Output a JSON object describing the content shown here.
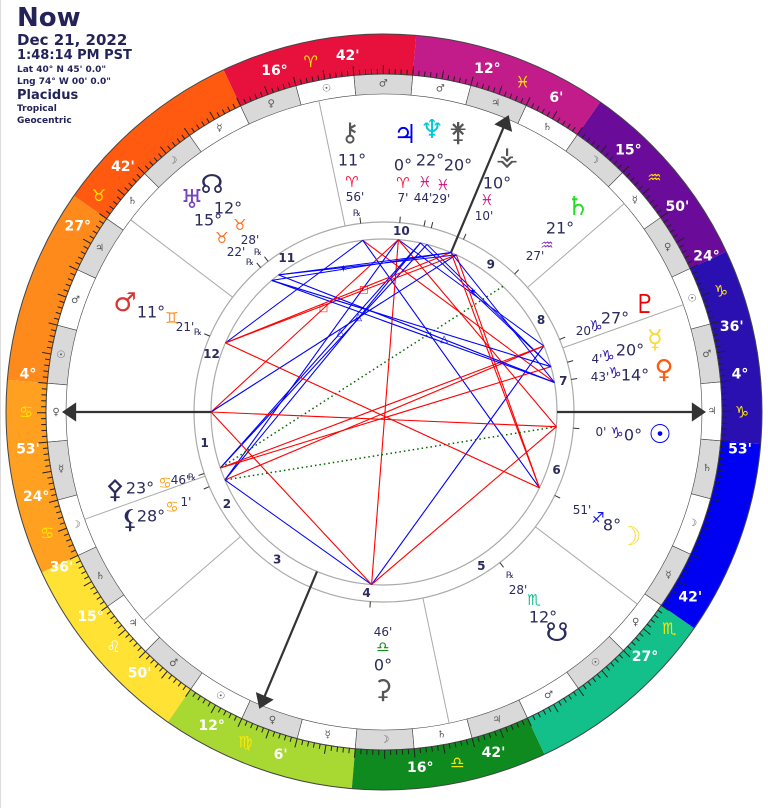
{
  "header": {
    "title": "Now",
    "date": "Dec 21, 2022",
    "time": "1:48:14 PM PST",
    "latitude": "Lat 40° N 45' 0.0\"",
    "longitude": "Lng 74° W 00' 0.0\"",
    "house_system": "Placidus",
    "zodiac": "Tropical",
    "perspective": "Geocentric"
  },
  "colors": {
    "text": "#2b2b5e",
    "retro_mark": "℞",
    "signs": [
      "#e8103c",
      "#ff5a10",
      "#ff8a1c",
      "#ffa020",
      "#ffe233",
      "#a8d832",
      "#0e8a1e",
      "#14c08a",
      "#0000f2",
      "#2a10b0",
      "#6a0b9a",
      "#c21b8a"
    ],
    "decan_gray": "#d9d9d9",
    "aspect_hard": "#ff0000",
    "aspect_soft": "#0000ff",
    "aspect_minor": "#006400"
  },
  "signs": [
    "♈",
    "♉",
    "♊",
    "♋",
    "♌",
    "♍",
    "♎",
    "♏",
    "♐",
    "♑",
    "♒",
    "♓"
  ],
  "decan_rulers": [
    "♂",
    "☉",
    "♀",
    "☿",
    "☽",
    "♄",
    "♃"
  ],
  "ascendant_longitude": 94.883,
  "cusps": [
    {
      "house": "1",
      "lon": 94.883,
      "deg": "4°",
      "sign": "♋",
      "min": "53'"
    },
    {
      "house": "2",
      "lon": 114.6,
      "deg": "24°",
      "sign": "♋",
      "min": "36'"
    },
    {
      "house": "3",
      "lon": 135.833,
      "deg": "15°",
      "sign": "♌",
      "min": "50'"
    },
    {
      "house": "4",
      "lon": 162.1,
      "deg": "12°",
      "sign": "♍",
      "min": "6'"
    },
    {
      "house": "5",
      "lon": 196.7,
      "deg": "16°",
      "sign": "♎",
      "min": "42'"
    },
    {
      "house": "6",
      "lon": 237.7,
      "deg": "27°",
      "sign": "♏",
      "min": "42'"
    },
    {
      "house": "7",
      "lon": 274.883,
      "deg": "4°",
      "sign": "♑",
      "min": "53'"
    },
    {
      "house": "8",
      "lon": 294.6,
      "deg": "24°",
      "sign": "♑",
      "min": "36'"
    },
    {
      "house": "9",
      "lon": 315.833,
      "deg": "15°",
      "sign": "♒",
      "min": "50'"
    },
    {
      "house": "10",
      "lon": 342.1,
      "deg": "12°",
      "sign": "♓",
      "min": "6'"
    },
    {
      "house": "11",
      "lon": 16.7,
      "deg": "16°",
      "sign": "♈",
      "min": "42'"
    },
    {
      "house": "12",
      "lon": 57.7,
      "deg": "27°",
      "sign": "♉",
      "min": "42'"
    }
  ],
  "planets": [
    {
      "id": "chiron",
      "glyph": "⚷",
      "lon": 11.933,
      "deg": "11°",
      "sign": "♈",
      "min": "56'",
      "retro": true,
      "color": "#555555"
    },
    {
      "id": "jupiter",
      "glyph": "♃",
      "lon": 0.117,
      "deg": "0°",
      "sign": "♈",
      "min": "7'",
      "retro": false,
      "color": "#0000ee"
    },
    {
      "id": "neptune",
      "glyph": "♆",
      "lon": 352.733,
      "deg": "22°",
      "sign": "♓",
      "min": "44'",
      "retro": false,
      "color": "#00c8d8"
    },
    {
      "id": "juno",
      "glyph": "⚵",
      "lon": 350.483,
      "deg": "20°",
      "sign": "♓",
      "min": "29'",
      "retro": false,
      "color": "#555555"
    },
    {
      "id": "vesta",
      "glyph": "⚶",
      "lon": 340.167,
      "deg": "10°",
      "sign": "♓",
      "min": "10'",
      "retro": false,
      "color": "#555555"
    },
    {
      "id": "saturn",
      "glyph": "♄",
      "lon": 321.45,
      "deg": "21°",
      "sign": "♒",
      "min": "27'",
      "retro": false,
      "color": "#22dd22"
    },
    {
      "id": "pluto",
      "glyph": "♇",
      "lon": 297.333,
      "deg": "27°",
      "sign": "♑",
      "min": "20'",
      "retro": false,
      "color": "#ee0000"
    },
    {
      "id": "mercury",
      "glyph": "☿",
      "lon": 290.067,
      "deg": "20°",
      "sign": "♑",
      "min": "4'",
      "retro": false,
      "color": "#f7dc3a"
    },
    {
      "id": "venus",
      "glyph": "♀",
      "lon": 284.717,
      "deg": "14°",
      "sign": "♑",
      "min": "43'",
      "retro": false,
      "color": "#ff5a10"
    },
    {
      "id": "sun",
      "glyph": "☉",
      "lon": 270.0,
      "deg": "0°",
      "sign": "♑",
      "min": "0'",
      "retro": false,
      "color": "#0000ee"
    },
    {
      "id": "moon",
      "glyph": "☽",
      "lon": 248.85,
      "deg": "8°",
      "sign": "♐",
      "min": "51'",
      "retro": false,
      "color": "#f7dc3a"
    },
    {
      "id": "south-node",
      "glyph": "☋",
      "lon": 222.467,
      "deg": "12°",
      "sign": "♏",
      "min": "28'",
      "retro": true,
      "color": "#2b2b5e"
    },
    {
      "id": "ceres",
      "glyph": "⚳",
      "lon": 180.767,
      "deg": "0°",
      "sign": "♎",
      "min": "46'",
      "retro": false,
      "color": "#555555"
    },
    {
      "id": "lilith",
      "glyph": "⚸",
      "lon": 118.017,
      "deg": "28°",
      "sign": "♋",
      "min": "1'",
      "retro": false,
      "color": "#2b2b5e"
    },
    {
      "id": "pallas",
      "glyph": "⚴",
      "lon": 113.767,
      "deg": "23°",
      "sign": "♋",
      "min": "46'",
      "retro": true,
      "color": "#2b2b5e"
    },
    {
      "id": "mars",
      "glyph": "♂",
      "lon": 71.35,
      "deg": "11°",
      "sign": "♊",
      "min": "21'",
      "retro": true,
      "color": "#dd3333"
    },
    {
      "id": "uranus",
      "glyph": "♅",
      "lon": 45.367,
      "deg": "15°",
      "sign": "♉",
      "min": "22'",
      "retro": true,
      "color": "#7744bb"
    },
    {
      "id": "north-node",
      "glyph": "☊",
      "lon": 42.467,
      "deg": "12°",
      "sign": "♉",
      "min": "28'",
      "retro": true,
      "color": "#2b2b5e"
    }
  ]
}
